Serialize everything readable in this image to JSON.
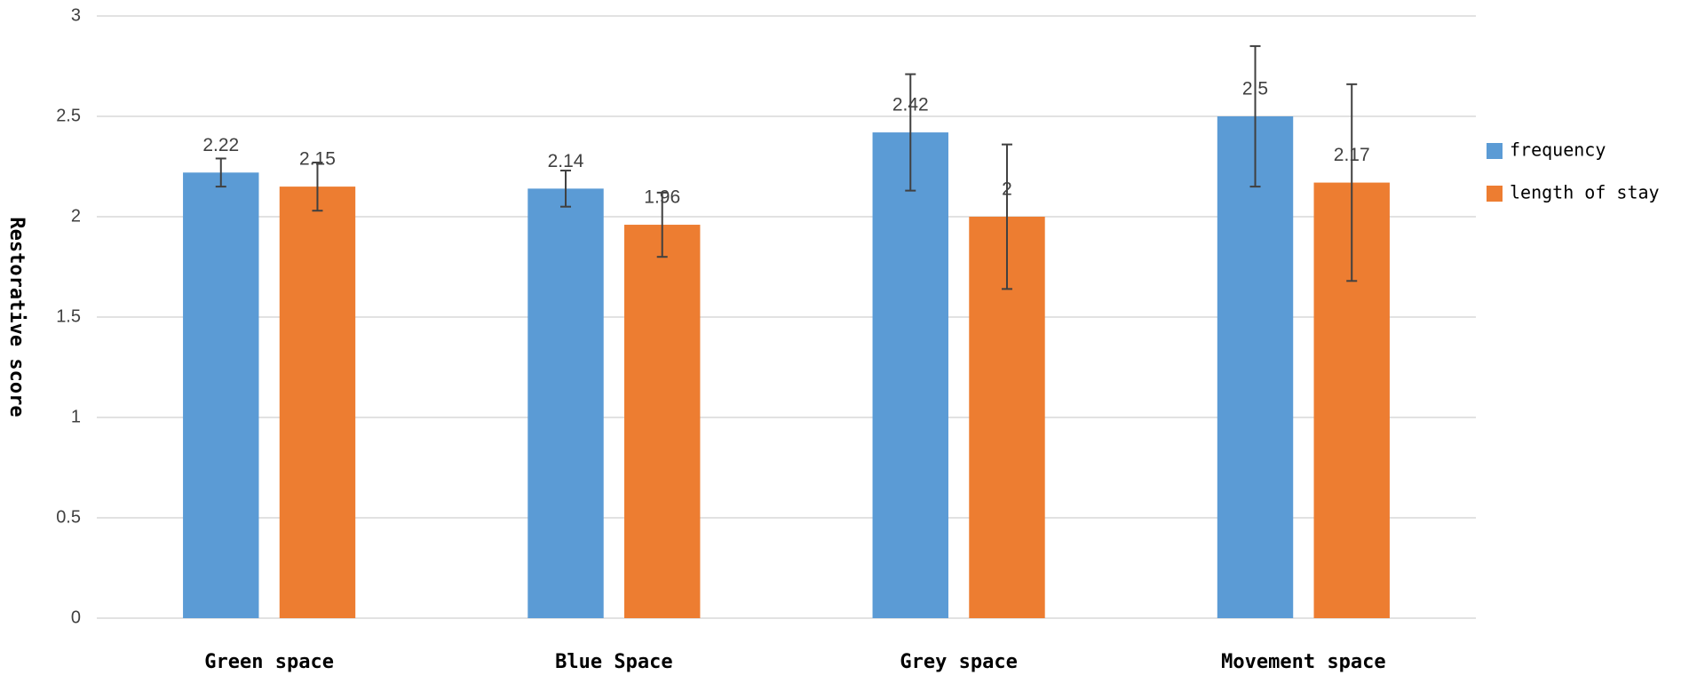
{
  "chart_data": {
    "type": "bar",
    "y_label": "Restorative score",
    "categories": [
      "Green space",
      "Blue Space",
      "Grey space",
      "Movement space"
    ],
    "series": [
      {
        "name": "frequency",
        "color": "#5b9bd5",
        "values": [
          2.22,
          2.14,
          2.42,
          2.5
        ],
        "errors": [
          0.07,
          0.09,
          0.29,
          0.35
        ]
      },
      {
        "name": "length of stay",
        "color": "#ed7d31",
        "values": [
          2.15,
          1.96,
          2,
          2.17
        ],
        "errors": [
          0.12,
          0.16,
          0.36,
          0.49
        ]
      }
    ],
    "ylim": [
      0,
      3
    ],
    "yticks": [
      0,
      0.5,
      1,
      1.5,
      2,
      2.5,
      3
    ],
    "grid": true,
    "legend": "right"
  }
}
